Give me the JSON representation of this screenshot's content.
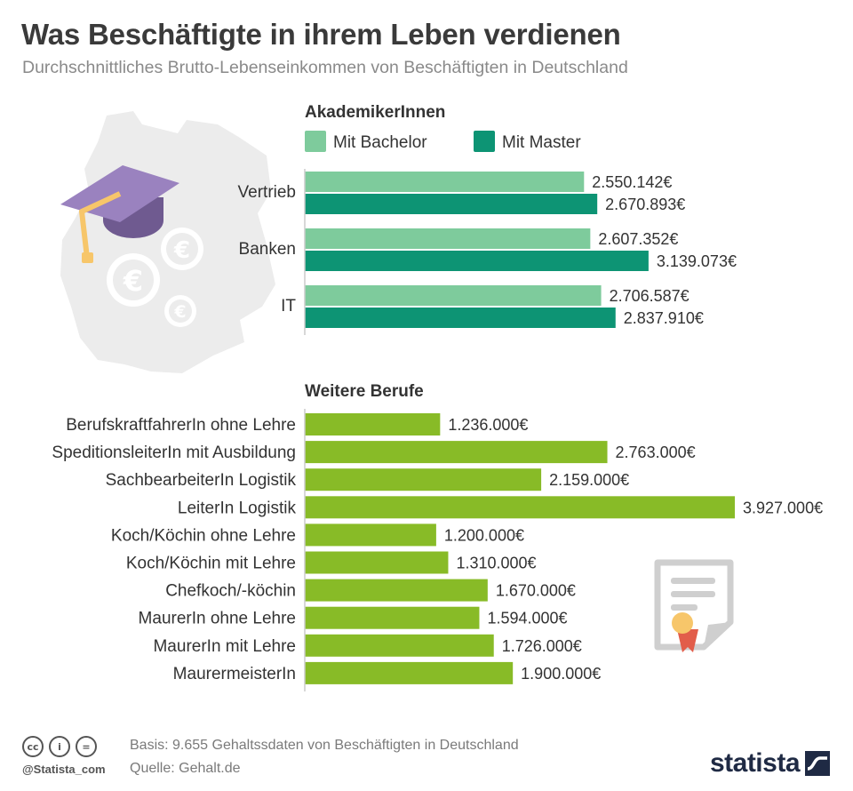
{
  "header": {
    "title": "Was Beschäftigte in ihrem Leben verdienen",
    "subtitle": "Durchschnittliches Brutto-Lebenseinkommen von Beschäftigten in Deutschland"
  },
  "colors": {
    "bachelor": "#7ecb9c",
    "master": "#0d9474",
    "other": "#88bb27",
    "map": "#ececec"
  },
  "icons": [
    "germany-map-icon",
    "graduation-cap-icon",
    "euro-icon",
    "certificate-icon"
  ],
  "chart_data": [
    {
      "type": "bar",
      "orientation": "horizontal",
      "title": "AkademikerInnen",
      "categories": [
        "Vertrieb",
        "Banken",
        "IT"
      ],
      "series": [
        {
          "name": "Mit Bachelor",
          "values": [
            2550142,
            2607352,
            2706587
          ],
          "labels": [
            "2.550.142€",
            "2.607.352€",
            "2.706.587€"
          ]
        },
        {
          "name": "Mit Master",
          "values": [
            2670893,
            3139073,
            2837910
          ],
          "labels": [
            "2.670.893€",
            "3.139.073€",
            "2.837.910€"
          ]
        }
      ],
      "legend": "top"
    },
    {
      "type": "bar",
      "orientation": "horizontal",
      "title": "Weitere Berufe",
      "categories": [
        "BerufskraftfahrerIn ohne Lehre",
        "SpeditionsleiterIn mit Ausbildung",
        "SachbearbeiterIn Logistik",
        "LeiterIn Logistik",
        "Koch/Köchin ohne Lehre",
        "Koch/Köchin mit Lehre",
        "Chefkoch/-köchin",
        "MaurerIn ohne Lehre",
        "MaurerIn mit Lehre",
        "MaurermeisterIn"
      ],
      "values": [
        1236000,
        2763000,
        2159000,
        3927000,
        1200000,
        1310000,
        1670000,
        1594000,
        1726000,
        1900000
      ],
      "labels": [
        "1.236.000€",
        "2.763.000€",
        "2.159.000€",
        "3.927.000€",
        "1.200.000€",
        "1.310.000€",
        "1.670.000€",
        "1.594.000€",
        "1.726.000€",
        "1.900.000€"
      ]
    }
  ],
  "footer": {
    "handle": "@Statista_com",
    "basis": "Basis: 9.655 Gehaltssdaten von Beschäftigten in Deutschland",
    "source": "Quelle: Gehalt.de",
    "logo": "statista"
  }
}
